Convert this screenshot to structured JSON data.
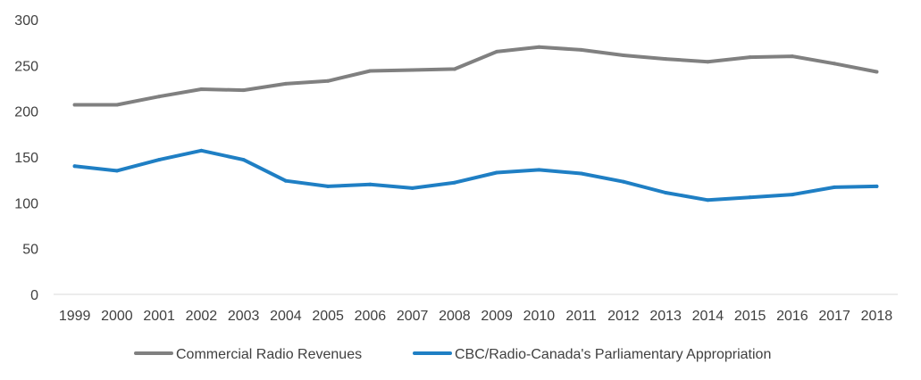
{
  "chart_data": {
    "type": "line",
    "title": "",
    "xlabel": "",
    "ylabel": "",
    "ylim": [
      0,
      300
    ],
    "yticks": [
      0,
      50,
      100,
      150,
      200,
      250,
      300
    ],
    "grid": false,
    "legend_position": "bottom",
    "categories": [
      "1999",
      "2000",
      "2001",
      "2002",
      "2003",
      "2004",
      "2005",
      "2006",
      "2007",
      "2008",
      "2009",
      "2010",
      "2011",
      "2012",
      "2013",
      "2014",
      "2015",
      "2016",
      "2017",
      "2018"
    ],
    "series": [
      {
        "name": "Commercial Radio Revenues",
        "color": "#808080",
        "values": [
          207,
          207,
          216,
          224,
          223,
          230,
          233,
          244,
          245,
          246,
          265,
          270,
          267,
          261,
          257,
          254,
          259,
          260,
          252,
          243
        ]
      },
      {
        "name": "CBC/Radio-Canada's Parliamentary Appropriation",
        "color": "#1f7fc4",
        "values": [
          140,
          135,
          147,
          157,
          147,
          124,
          118,
          120,
          116,
          122,
          133,
          136,
          132,
          123,
          111,
          103,
          106,
          109,
          117,
          118
        ]
      }
    ]
  }
}
